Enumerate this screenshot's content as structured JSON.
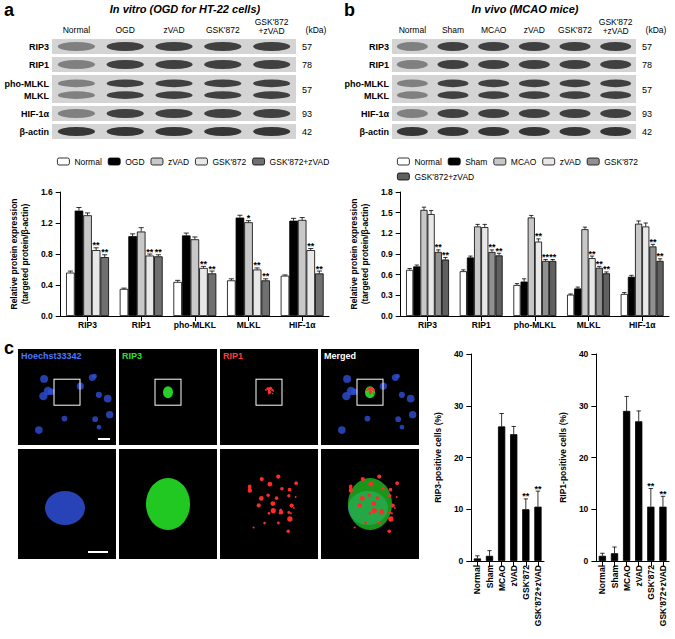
{
  "panel_labels": [
    "a",
    "b",
    "c"
  ],
  "blots": [
    {
      "title": "In vitro (OGD for HT-22 cells)",
      "unit": "(kDa)",
      "lanes": [
        "Normal",
        "OGD",
        "zVAD",
        "GSK'872",
        "GSK'872\n+zVAD"
      ],
      "rows": [
        {
          "labels": [
            "RIP3"
          ],
          "kda": 57
        },
        {
          "labels": [
            "RIP1"
          ],
          "kda": 78
        },
        {
          "labels": [
            "pho-MLKL",
            "MLKL"
          ],
          "kda": 57
        },
        {
          "labels": [
            "HIF-1α"
          ],
          "kda": 93
        },
        {
          "labels": [
            "β-actin"
          ],
          "kda": 42
        }
      ]
    },
    {
      "title": "In vivo (MCAO mice)",
      "unit": "(kDa)",
      "lanes": [
        "Normal",
        "Sham",
        "MCAO",
        "zVAD",
        "GSK'872",
        "GSK'872\n+zVAD"
      ],
      "rows": [
        {
          "labels": [
            "RIP3"
          ],
          "kda": 57
        },
        {
          "labels": [
            "RIP1"
          ],
          "kda": 78
        },
        {
          "labels": [
            "pho-MLKL",
            "MLKL"
          ],
          "kda": 57
        },
        {
          "labels": [
            "HIF-1α"
          ],
          "kda": 93
        },
        {
          "labels": [
            "β-actin"
          ],
          "kda": 42
        }
      ]
    }
  ],
  "micrographs": {
    "channels": [
      "Hoechst33342",
      "RIP3",
      "RIP1",
      "Merged"
    ]
  },
  "chart_data": [
    {
      "type": "bar",
      "y_label": "Relative protein expression\n(targeted protein/β-actin)",
      "categories": [
        "RIP3",
        "RIP1",
        "pho-MLKL",
        "MLKL",
        "HIF-1α"
      ],
      "ylim": [
        0,
        1.6
      ],
      "yticks": [
        {
          "value": 0,
          "label": "0.0"
        },
        0.4,
        0.8,
        1.2,
        1.6
      ],
      "grid": false,
      "legend": "top",
      "series": [
        {
          "name": "Normal",
          "color": "#ffffff",
          "values": [
            0.56,
            0.35,
            0.44,
            0.46,
            0.52
          ],
          "errors": [
            0.02,
            0.01,
            0.02,
            0.02,
            0.01
          ],
          "significance": [
            null,
            null,
            null,
            null,
            null
          ]
        },
        {
          "name": "OGD",
          "color": "#000000",
          "values": [
            1.36,
            1.03,
            1.04,
            1.27,
            1.23
          ],
          "errors": [
            0.04,
            0.03,
            0.03,
            0.03,
            0.03
          ],
          "significance": [
            null,
            null,
            null,
            null,
            null
          ]
        },
        {
          "name": "zVAD",
          "color": "#c8c8c8",
          "values": [
            1.3,
            1.09,
            0.99,
            1.21,
            1.24
          ],
          "errors": [
            0.03,
            0.05,
            0.03,
            0.02,
            0.03
          ],
          "significance": [
            null,
            null,
            null,
            "*",
            null
          ]
        },
        {
          "name": "GSK'872",
          "color": "#e8e8e8",
          "values": [
            0.85,
            0.78,
            0.62,
            0.6,
            0.85
          ],
          "errors": [
            0.03,
            0.02,
            0.02,
            0.02,
            0.02
          ],
          "significance": [
            "**",
            "**",
            "**",
            "**",
            "**"
          ]
        },
        {
          "name": "GSK'872+zVAD",
          "color": "#707070",
          "values": [
            0.76,
            0.77,
            0.55,
            0.46,
            0.55
          ],
          "errors": [
            0.03,
            0.02,
            0.03,
            0.02,
            0.03
          ],
          "significance": [
            "**",
            "**",
            "**",
            "**",
            "**"
          ]
        }
      ]
    },
    {
      "type": "bar",
      "y_label": "Relative protein expression\n(targeted protein/β-actin)",
      "categories": [
        "RIP3",
        "RIP1",
        "pho-MLKL",
        "MLKL",
        "HIF-1α"
      ],
      "ylim": [
        0,
        1.8
      ],
      "yticks": [
        {
          "value": 0,
          "label": "0.0"
        },
        0.3,
        0.6,
        0.9,
        1.2,
        1.5,
        1.8
      ],
      "grid": false,
      "legend": "top",
      "series": [
        {
          "name": "Normal",
          "color": "#ffffff",
          "values": [
            0.67,
            0.65,
            0.45,
            0.31,
            0.32
          ],
          "errors": [
            0.02,
            0.02,
            0.02,
            0.01,
            0.02
          ],
          "significance": [
            null,
            null,
            null,
            null,
            null
          ]
        },
        {
          "name": "Sham",
          "color": "#000000",
          "values": [
            0.72,
            0.85,
            0.5,
            0.4,
            0.57
          ],
          "errors": [
            0.02,
            0.02,
            0.04,
            0.02,
            0.02
          ],
          "significance": [
            null,
            null,
            null,
            null,
            null
          ]
        },
        {
          "name": "MCAO",
          "color": "#c8c8c8",
          "values": [
            1.54,
            1.3,
            1.43,
            1.26,
            1.34
          ],
          "errors": [
            0.04,
            0.03,
            0.03,
            0.03,
            0.04
          ],
          "significance": [
            null,
            null,
            null,
            null,
            null
          ]
        },
        {
          "name": "zVAD",
          "color": "#e8e8e8",
          "values": [
            1.48,
            1.29,
            1.08,
            0.84,
            1.3
          ],
          "errors": [
            0.05,
            0.04,
            0.04,
            0.03,
            0.05
          ],
          "significance": [
            null,
            null,
            "**",
            "**",
            null
          ]
        },
        {
          "name": "GSK'872",
          "color": "#909090",
          "values": [
            0.93,
            0.93,
            0.8,
            0.7,
            1.01
          ],
          "errors": [
            0.03,
            0.03,
            0.02,
            0.02,
            0.03
          ],
          "significance": [
            "**",
            "**",
            "**",
            "**",
            "**"
          ]
        },
        {
          "name": "GSK'872+zVAD",
          "color": "#606060",
          "values": [
            0.82,
            0.88,
            0.8,
            0.62,
            0.8
          ],
          "errors": [
            0.03,
            0.03,
            0.02,
            0.02,
            0.03
          ],
          "significance": [
            "**",
            "**",
            "**",
            "**",
            "**"
          ]
        }
      ]
    },
    {
      "type": "bar",
      "y_label": "RIP3-positive cells (%)",
      "categories": [
        "Normal",
        "Sham",
        "MCAO",
        "zVAD",
        "GSK'872",
        "GSK'872+zVAD"
      ],
      "ylim": [
        0,
        40
      ],
      "yticks": [
        0,
        10,
        20,
        30,
        40
      ],
      "grid": false,
      "series": [
        {
          "color": "#000000",
          "values": [
            0.5,
            1.0,
            26,
            24.5,
            10,
            10.5
          ],
          "errors": [
            0.5,
            1.0,
            2.5,
            1.5,
            2.0,
            3.0
          ],
          "significance": [
            null,
            null,
            null,
            null,
            "**",
            "**"
          ]
        }
      ]
    },
    {
      "type": "bar",
      "y_label": "RIP1-positive cells (%)",
      "categories": [
        "Normal",
        "Sham",
        "MCAO",
        "zVAD",
        "GSK'872",
        "GSK'872+zVAD"
      ],
      "ylim": [
        0,
        40
      ],
      "yticks": [
        0,
        10,
        20,
        30,
        40
      ],
      "grid": false,
      "series": [
        {
          "color": "#000000",
          "values": [
            1.0,
            1.5,
            29,
            27,
            10.5,
            10.5
          ],
          "errors": [
            0.5,
            1.2,
            2.8,
            2.0,
            3.5,
            2.0
          ],
          "significance": [
            null,
            null,
            null,
            null,
            "**",
            "**"
          ]
        }
      ]
    }
  ]
}
